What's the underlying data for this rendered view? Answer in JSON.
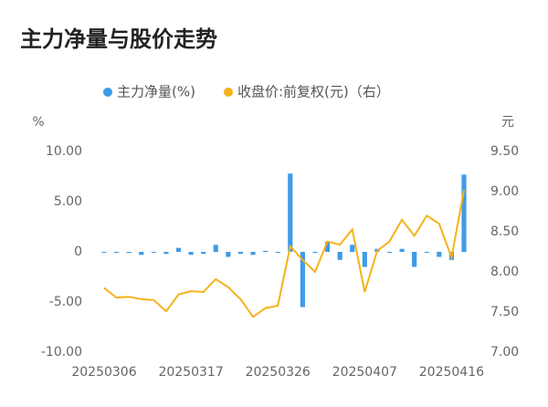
{
  "chart_data": {
    "type": "bar_line",
    "title": "主力净量与股价走势",
    "y_label": "%",
    "y2_label": "元",
    "categories": [
      "20250306",
      null,
      null,
      null,
      null,
      null,
      null,
      "20250317",
      null,
      null,
      null,
      null,
      null,
      null,
      "20250326",
      null,
      null,
      null,
      null,
      null,
      null,
      "20250407",
      null,
      null,
      null,
      null,
      null,
      null,
      "20250416",
      null
    ],
    "series": [
      {
        "name": "主力净量(%)",
        "type": "bar",
        "color": "#3d9be9",
        "values": [
          -0.1,
          -0.1,
          -0.1,
          -0.3,
          -0.1,
          -0.2,
          0.4,
          -0.3,
          -0.2,
          0.7,
          -0.5,
          -0.2,
          -0.3,
          0.1,
          -0.1,
          7.8,
          -5.5,
          -0.1,
          1.0,
          -0.8,
          0.7,
          -1.5,
          0.3,
          -0.1,
          0.3,
          -1.5,
          -0.1,
          -0.5,
          -0.8,
          7.7
        ]
      },
      {
        "name": "收盘价:前复权(元)（右）",
        "type": "line",
        "axis": "y2",
        "color": "#f5b21a",
        "values": [
          7.8,
          7.68,
          7.69,
          7.66,
          7.65,
          7.51,
          7.72,
          7.76,
          7.75,
          7.91,
          7.81,
          7.66,
          7.44,
          7.55,
          7.58,
          8.32,
          8.15,
          8.0,
          8.38,
          8.34,
          8.53,
          7.75,
          8.26,
          8.38,
          8.65,
          8.45,
          8.7,
          8.6,
          8.18,
          9.02
        ]
      }
    ],
    "ylim": [
      -10,
      10
    ],
    "yticks": [
      {
        "value": 10,
        "label": "10.00"
      },
      {
        "value": 5,
        "label": "5.00"
      },
      0,
      {
        "value": -5,
        "label": "-5.00"
      },
      {
        "value": -10,
        "label": "-10.00"
      }
    ],
    "y2lim": [
      7,
      9.5
    ],
    "y2ticks": [
      {
        "value": 9.5,
        "label": "9.50"
      },
      {
        "value": 9,
        "label": "9.00"
      },
      {
        "value": 8.5,
        "label": "8.50"
      },
      {
        "value": 8,
        "label": "8.00"
      },
      {
        "value": 7.5,
        "label": "7.50"
      },
      {
        "value": 7,
        "label": "7.00"
      }
    ],
    "grid": false
  }
}
